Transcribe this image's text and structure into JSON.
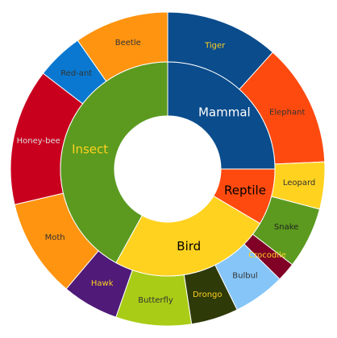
{
  "chart_data": {
    "type": "pie",
    "inner_ring": [
      {
        "label": "Mammal",
        "value": 25,
        "color": "#0B4C8C",
        "label_color": "#FFFFFF"
      },
      {
        "label": "Reptile",
        "value": 8.5,
        "color": "#FF4A0F",
        "label_color": "#000000"
      },
      {
        "label": "Bird",
        "value": 24.5,
        "color": "#FFD21F",
        "label_color": "#000000"
      },
      {
        "label": "Insect",
        "value": 42,
        "color": "#5B9A1F",
        "label_color": "#FFD21F"
      }
    ],
    "outer_ring": [
      {
        "label": "Tiger",
        "value": 12,
        "color": "#0B4C8C",
        "label_color": "#FFD21F"
      },
      {
        "label": "Elephant",
        "value": 13,
        "color": "#FF4A0F",
        "label_color": "#333333"
      },
      {
        "label": "Leopard",
        "value": 5,
        "color": "#FFD21F",
        "label_color": "#333333"
      },
      {
        "label": "Snake",
        "value": 6.5,
        "color": "#5B9A1F",
        "label_color": "#222222"
      },
      {
        "label": "Crocodile",
        "value": 2,
        "color": "#800026",
        "label_color": "#FFD21F"
      },
      {
        "label": "Bulbul",
        "value": 5.5,
        "color": "#86C5F7",
        "label_color": "#333333"
      },
      {
        "label": "Drongo",
        "value": 5,
        "color": "#2E3A08",
        "label_color": "#FFD21F"
      },
      {
        "label": "Butterfly",
        "value": 8,
        "color": "#A9CC16",
        "label_color": "#333333"
      },
      {
        "label": "Hawk",
        "value": 6,
        "color": "#4F1A78",
        "label_color": "#FFD21F"
      },
      {
        "label": "Moth",
        "value": 10.5,
        "color": "#FF9410",
        "label_color": "#333333"
      },
      {
        "label": "Honey-bee",
        "value": 14.5,
        "color": "#C8001E",
        "label_color": "#DDDDDD"
      },
      {
        "label": "Red-ant",
        "value": 5,
        "color": "#0A78D0",
        "label_color": "#333333"
      },
      {
        "label": "Beetle",
        "value": 10,
        "color": "#FF9410",
        "label_color": "#333333"
      }
    ]
  }
}
